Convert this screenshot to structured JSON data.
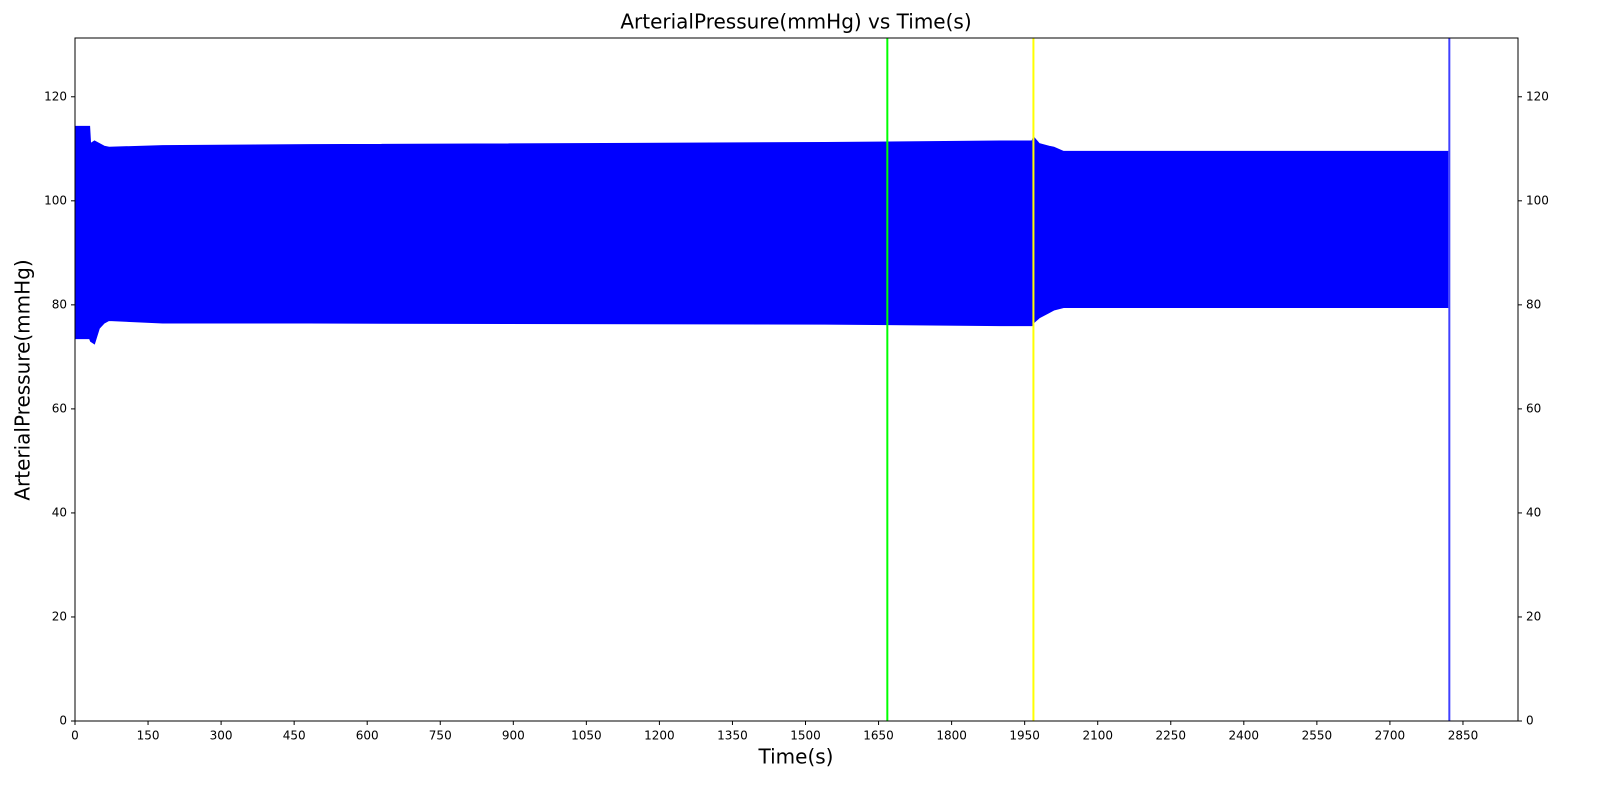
{
  "chart_data": {
    "type": "band",
    "title": "ArterialPressure(mmHg) vs Time(s)",
    "x_label": "Time(s)",
    "y_label": "ArterialPressure(mmHg)",
    "x": [
      0,
      30,
      32,
      40,
      50,
      60,
      70,
      180,
      480,
      1540,
      1900,
      1965,
      1968,
      1980,
      2000,
      2010,
      2030,
      2820
    ],
    "series": [
      {
        "color": "#0000ff",
        "values": [
          114.3,
          114.3,
          111,
          111.5,
          111,
          110.5,
          110.3,
          110.6,
          110.8,
          111.2,
          111.5,
          111.5,
          112.3,
          111,
          110.5,
          110.3,
          109.5,
          109.5
        ]
      },
      {
        "color": "#0000ff",
        "values": [
          73.5,
          73.5,
          73,
          72.5,
          75.5,
          76.5,
          77,
          76.5,
          76.5,
          76.3,
          76,
          76,
          76.5,
          77.5,
          78.5,
          79,
          79.5,
          79.5
        ]
      }
    ],
    "vlines": [
      {
        "x": 1668,
        "color": "#00ff00"
      },
      {
        "x": 1968,
        "color": "#ffff00"
      },
      {
        "x": 2822,
        "color": "#4040ff"
      }
    ],
    "xlim": [
      0,
      2963
    ],
    "ylim": [
      0,
      131.3
    ],
    "xticks": [
      0,
      150,
      300,
      450,
      600,
      750,
      900,
      1050,
      1200,
      1350,
      1500,
      1650,
      1800,
      1950,
      2100,
      2250,
      2400,
      2550,
      2700,
      2850
    ],
    "yticks": [
      0,
      20,
      40,
      60,
      80,
      100,
      120
    ],
    "mirror_y": true
  }
}
